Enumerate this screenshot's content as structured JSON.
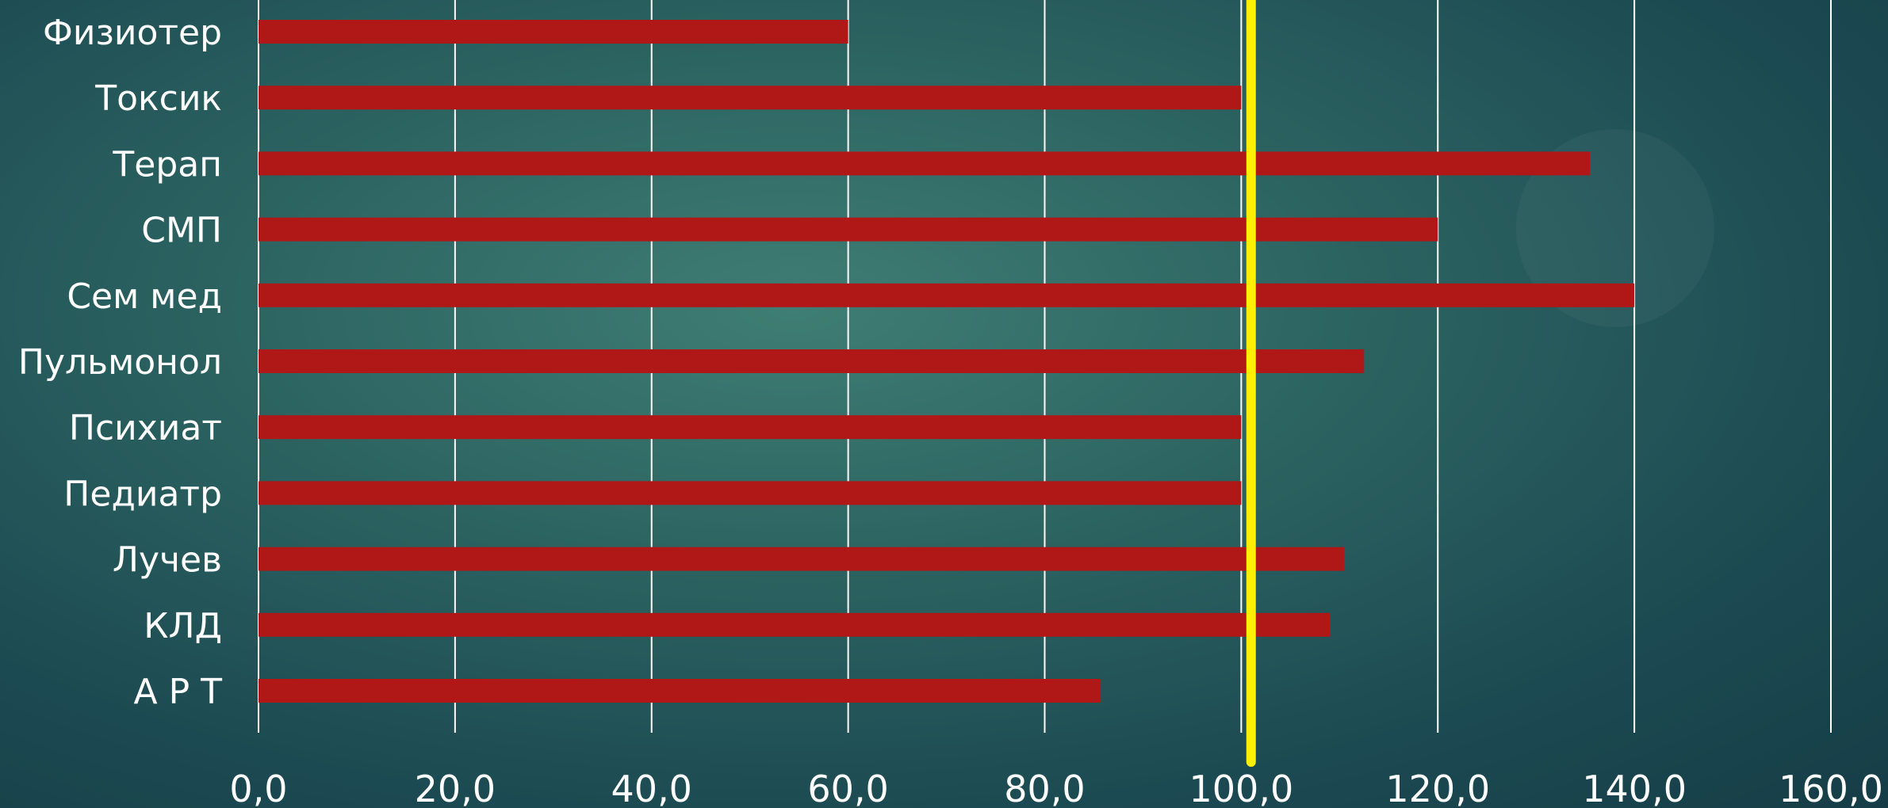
{
  "chart_data": {
    "type": "bar",
    "orientation": "horizontal",
    "categories": [
      "Физиотер",
      "Токсик",
      "Терап",
      "СМП",
      "Сем  мед",
      "Пульмонол",
      "Психиат",
      "Педиатр",
      "Лучев",
      "КЛД",
      "А Р Т"
    ],
    "values": [
      60.0,
      100.0,
      135.5,
      120.0,
      140.0,
      112.5,
      100.0,
      100.0,
      110.5,
      109.0,
      85.7
    ],
    "xlim": [
      0,
      160
    ],
    "xticks": [
      "0,0",
      "20,0",
      "40,0",
      "60,0",
      "80,0",
      "100,0",
      "120,0",
      "140,0",
      "160,0"
    ],
    "reference_line": 101,
    "grid": "vertical",
    "legend": "none",
    "title": "",
    "xlabel": "",
    "ylabel": "",
    "colors": {
      "bar": "#b01818",
      "reference_line": "#ffef00",
      "grid": "#ffffff",
      "text": "#ffffff"
    }
  }
}
